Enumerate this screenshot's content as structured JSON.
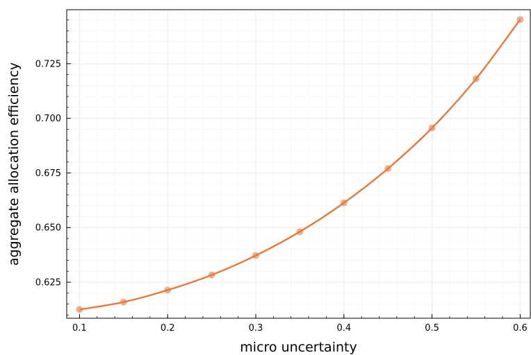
{
  "chart_data": {
    "type": "line",
    "title": "",
    "xlabel": "micro uncertainty",
    "ylabel": "aggregate allocation efficiency",
    "x": [
      0.1,
      0.15,
      0.2,
      0.25,
      0.3,
      0.35,
      0.4,
      0.45,
      0.5,
      0.55,
      0.6
    ],
    "series": [
      {
        "name": "",
        "values": [
          0.6125,
          0.6159,
          0.6214,
          0.6283,
          0.6372,
          0.6481,
          0.6613,
          0.677,
          0.6956,
          0.7181,
          0.7452
        ]
      }
    ],
    "xlim": [
      0.0855,
      0.6115
    ],
    "ylim": [
      0.6085,
      0.7497
    ],
    "xticks": [
      0.1,
      0.2,
      0.3,
      0.4,
      0.5,
      0.6
    ],
    "xtick_labels": [
      "0.1",
      "0.2",
      "0.3",
      "0.4",
      "0.5",
      "0.6"
    ],
    "yticks": [
      0.625,
      0.65,
      0.675,
      0.7,
      0.725
    ],
    "ytick_labels": [
      "0.625",
      "0.650",
      "0.675",
      "0.700",
      "0.725"
    ],
    "grid": true,
    "legend": "none",
    "colors": {
      "line": "#e4793a",
      "markers": "#f1a07a",
      "grid": "#ebebeb",
      "axis": "#000000"
    }
  }
}
